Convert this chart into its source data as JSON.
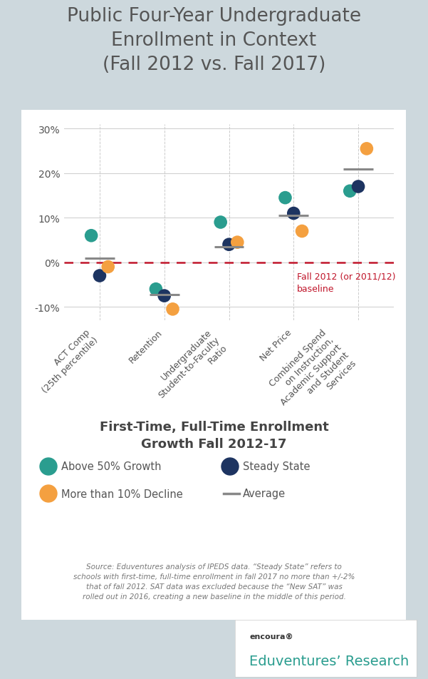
{
  "title": "Public Four-Year Undergraduate\nEnrollment in Context\n(Fall 2012 vs. Fall 2017)",
  "title_fontsize": 19,
  "background_outer": "#cdd8dd",
  "background_inner": "#ffffff",
  "categories": [
    "ACT Comp\n(25th percentile)",
    "Retention",
    "Undergraduate\nStudent-to-Faculty\nRatio",
    "Net Price",
    "Combined Spend\non Instruction,\nAcademic Support\nand Student\nServices"
  ],
  "teal_color": "#2a9d8f",
  "navy_color": "#1d3461",
  "orange_color": "#f4a040",
  "average_color": "#888888",
  "dashed_line_color": "#c0152a",
  "grid_color": "#cccccc",
  "points": {
    "teal": [
      6.0,
      -6.0,
      9.0,
      14.5,
      16.0
    ],
    "navy": [
      -3.0,
      -7.5,
      4.0,
      11.0,
      17.0
    ],
    "orange": [
      -1.0,
      -10.5,
      4.5,
      7.0,
      25.5
    ]
  },
  "averages": [
    1.0,
    -7.2,
    3.5,
    10.5,
    21.0
  ],
  "ylim": [
    -13,
    31
  ],
  "yticks": [
    -10,
    0,
    10,
    20,
    30
  ],
  "yticklabels": [
    "-10%",
    "0%",
    "10%",
    "20%",
    "30%"
  ],
  "subtitle": "First-Time, Full-Time Enrollment\nGrowth Fall 2012-17",
  "subtitle_fontsize": 13,
  "footnote": "Source: Eduventures analysis of IPEDS data. “Steady State” refers to\nschools with first-time, full-time enrollment in fall 2017 no more than +/-2%\nthat of fall 2012. SAT data was excluded because the “New SAT” was\nrolled out in 2016, creating a new baseline in the middle of this period.",
  "baseline_label": "Fall 2012 (or 2011/12)\nbaseline",
  "brand_name": "encoura®",
  "brand_sub": "Eduventures’ Research",
  "marker_size": 180,
  "teal_label": "Above 50% Growth",
  "orange_label": "More than 10% Decline",
  "navy_label": "Steady State",
  "avg_label": "Average"
}
